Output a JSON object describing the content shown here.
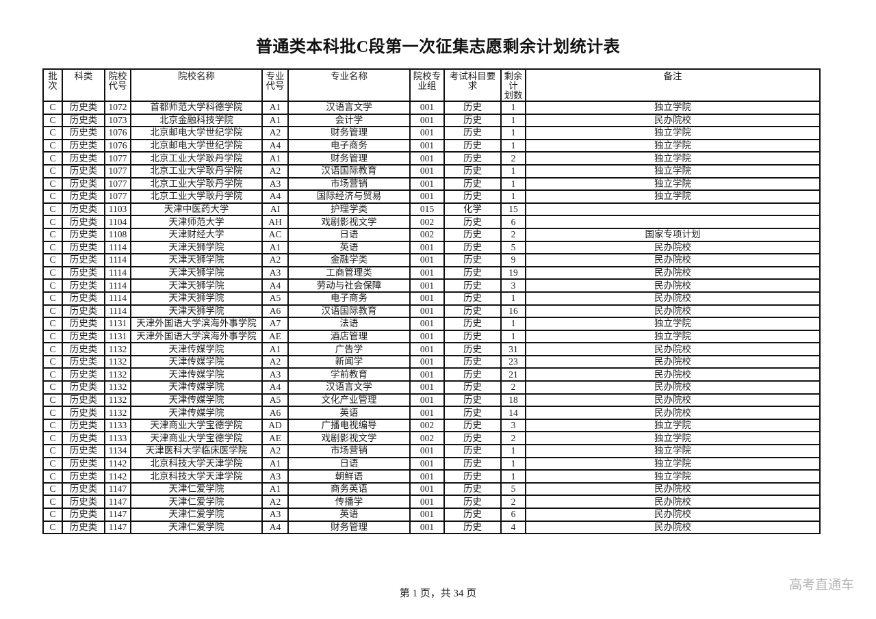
{
  "page": {
    "title": "普通类本科批C段第一次征集志愿剩余计划统计表",
    "footer": "第 1 页，共 34 页",
    "watermark": "高考直通车"
  },
  "colors": {
    "border": "#101010",
    "text": "#1b1b1b",
    "watermark": "#b5b5b5",
    "background": "#ffffff"
  },
  "table": {
    "columns": [
      {
        "key": "batch",
        "label": "批次"
      },
      {
        "key": "category",
        "label": "科类"
      },
      {
        "key": "school_code",
        "label": "院校\n代号"
      },
      {
        "key": "school_name",
        "label": "院校名称"
      },
      {
        "key": "major_code",
        "label": "专业\n代号"
      },
      {
        "key": "major_name",
        "label": "专业名称"
      },
      {
        "key": "group",
        "label": "院校专\n业组"
      },
      {
        "key": "subject_req",
        "label": "考试科目要求"
      },
      {
        "key": "remaining",
        "label": "剩余计\n划数"
      },
      {
        "key": "note",
        "label": "备注"
      }
    ],
    "rows": [
      [
        "C",
        "历史类",
        "1072",
        "首都师范大学科德学院",
        "A1",
        "汉语言文学",
        "001",
        "历史",
        "1",
        "独立学院"
      ],
      [
        "C",
        "历史类",
        "1073",
        "北京金融科技学院",
        "A1",
        "会计学",
        "001",
        "历史",
        "1",
        "民办院校"
      ],
      [
        "C",
        "历史类",
        "1076",
        "北京邮电大学世纪学院",
        "A2",
        "财务管理",
        "001",
        "历史",
        "1",
        "独立学院"
      ],
      [
        "C",
        "历史类",
        "1076",
        "北京邮电大学世纪学院",
        "A4",
        "电子商务",
        "001",
        "历史",
        "1",
        "独立学院"
      ],
      [
        "C",
        "历史类",
        "1077",
        "北京工业大学耿丹学院",
        "A1",
        "财务管理",
        "001",
        "历史",
        "2",
        "独立学院"
      ],
      [
        "C",
        "历史类",
        "1077",
        "北京工业大学耿丹学院",
        "A2",
        "汉语国际教育",
        "001",
        "历史",
        "1",
        "独立学院"
      ],
      [
        "C",
        "历史类",
        "1077",
        "北京工业大学耿丹学院",
        "A3",
        "市场营销",
        "001",
        "历史",
        "1",
        "独立学院"
      ],
      [
        "C",
        "历史类",
        "1077",
        "北京工业大学耿丹学院",
        "A4",
        "国际经济与贸易",
        "001",
        "历史",
        "1",
        "独立学院"
      ],
      [
        "C",
        "历史类",
        "1103",
        "天津中医药大学",
        "AI",
        "护理学类",
        "015",
        "化学",
        "15",
        ""
      ],
      [
        "C",
        "历史类",
        "1104",
        "天津师范大学",
        "AH",
        "戏剧影视文学",
        "002",
        "历史",
        "6",
        ""
      ],
      [
        "C",
        "历史类",
        "1108",
        "天津财经大学",
        "AC",
        "日语",
        "002",
        "历史",
        "2",
        "国家专项计划"
      ],
      [
        "C",
        "历史类",
        "1114",
        "天津天狮学院",
        "A1",
        "英语",
        "001",
        "历史",
        "5",
        "民办院校"
      ],
      [
        "C",
        "历史类",
        "1114",
        "天津天狮学院",
        "A2",
        "金融学类",
        "001",
        "历史",
        "9",
        "民办院校"
      ],
      [
        "C",
        "历史类",
        "1114",
        "天津天狮学院",
        "A3",
        "工商管理类",
        "001",
        "历史",
        "19",
        "民办院校"
      ],
      [
        "C",
        "历史类",
        "1114",
        "天津天狮学院",
        "A4",
        "劳动与社会保障",
        "001",
        "历史",
        "3",
        "民办院校"
      ],
      [
        "C",
        "历史类",
        "1114",
        "天津天狮学院",
        "A5",
        "电子商务",
        "001",
        "历史",
        "1",
        "民办院校"
      ],
      [
        "C",
        "历史类",
        "1114",
        "天津天狮学院",
        "A6",
        "汉语国际教育",
        "001",
        "历史",
        "16",
        "民办院校"
      ],
      [
        "C",
        "历史类",
        "1131",
        "天津外国语大学滨海外事学院",
        "A7",
        "法语",
        "001",
        "历史",
        "1",
        "独立学院"
      ],
      [
        "C",
        "历史类",
        "1131",
        "天津外国语大学滨海外事学院",
        "AE",
        "酒店管理",
        "001",
        "历史",
        "1",
        "独立学院"
      ],
      [
        "C",
        "历史类",
        "1132",
        "天津传媒学院",
        "A1",
        "广告学",
        "001",
        "历史",
        "31",
        "民办院校"
      ],
      [
        "C",
        "历史类",
        "1132",
        "天津传媒学院",
        "A2",
        "新闻学",
        "001",
        "历史",
        "23",
        "民办院校"
      ],
      [
        "C",
        "历史类",
        "1132",
        "天津传媒学院",
        "A3",
        "学前教育",
        "001",
        "历史",
        "21",
        "民办院校"
      ],
      [
        "C",
        "历史类",
        "1132",
        "天津传媒学院",
        "A4",
        "汉语言文学",
        "001",
        "历史",
        "2",
        "民办院校"
      ],
      [
        "C",
        "历史类",
        "1132",
        "天津传媒学院",
        "A5",
        "文化产业管理",
        "001",
        "历史",
        "18",
        "民办院校"
      ],
      [
        "C",
        "历史类",
        "1132",
        "天津传媒学院",
        "A6",
        "英语",
        "001",
        "历史",
        "14",
        "民办院校"
      ],
      [
        "C",
        "历史类",
        "1133",
        "天津商业大学宝德学院",
        "AD",
        "广播电视编导",
        "002",
        "历史",
        "3",
        "独立学院"
      ],
      [
        "C",
        "历史类",
        "1133",
        "天津商业大学宝德学院",
        "AE",
        "戏剧影视文学",
        "002",
        "历史",
        "2",
        "独立学院"
      ],
      [
        "C",
        "历史类",
        "1134",
        "天津医科大学临床医学院",
        "A2",
        "市场营销",
        "001",
        "历史",
        "1",
        "独立学院"
      ],
      [
        "C",
        "历史类",
        "1142",
        "北京科技大学天津学院",
        "A1",
        "日语",
        "001",
        "历史",
        "1",
        "独立学院"
      ],
      [
        "C",
        "历史类",
        "1142",
        "北京科技大学天津学院",
        "A3",
        "朝鲜语",
        "001",
        "历史",
        "1",
        "独立学院"
      ],
      [
        "C",
        "历史类",
        "1147",
        "天津仁爱学院",
        "A1",
        "商务英语",
        "001",
        "历史",
        "5",
        "民办院校"
      ],
      [
        "C",
        "历史类",
        "1147",
        "天津仁爱学院",
        "A2",
        "传播学",
        "001",
        "历史",
        "2",
        "民办院校"
      ],
      [
        "C",
        "历史类",
        "1147",
        "天津仁爱学院",
        "A3",
        "英语",
        "001",
        "历史",
        "6",
        "民办院校"
      ],
      [
        "C",
        "历史类",
        "1147",
        "天津仁爱学院",
        "A4",
        "财务管理",
        "001",
        "历史",
        "4",
        "民办院校"
      ]
    ]
  }
}
